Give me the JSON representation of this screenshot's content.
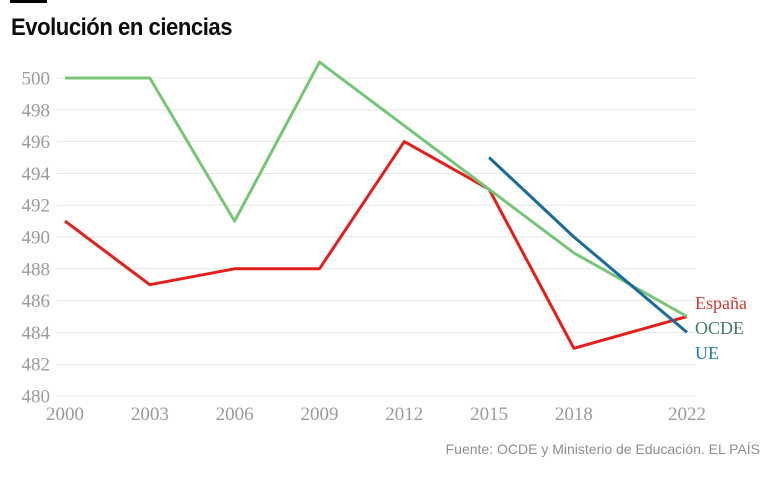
{
  "page": {
    "title": "Evolución en ciencias",
    "source": "Fuente: OCDE y Ministerio de Educación. EL PAÍS"
  },
  "chart_data": {
    "type": "line",
    "title": "Evolución en ciencias",
    "x_ticks": [
      2000,
      2003,
      2006,
      2009,
      2012,
      2015,
      2018,
      2022
    ],
    "x_range": [
      2000,
      2022
    ],
    "ylim": [
      480,
      500
    ],
    "y_tick_step": 2,
    "y_ticks": [
      480,
      482,
      484,
      486,
      488,
      490,
      492,
      494,
      496,
      498,
      500
    ],
    "grid": true,
    "legend_position": "right-end",
    "grid_color": "#e5e5e5",
    "axis_label_color": "#9b9b9b",
    "series": [
      {
        "name": "España",
        "color": "#e41f1a",
        "label_color": "#cf3832",
        "x": [
          2000,
          2003,
          2006,
          2009,
          2012,
          2015,
          2018,
          2022
        ],
        "values": [
          491,
          487,
          488,
          488,
          496,
          493,
          483,
          485
        ]
      },
      {
        "name": "OCDE",
        "color": "#78c577",
        "label_color": "#3e7d62",
        "x": [
          2000,
          2003,
          2006,
          2009,
          2012,
          2015,
          2018,
          2022
        ],
        "values": [
          500,
          500,
          491,
          501,
          497,
          493,
          489,
          485
        ]
      },
      {
        "name": "UE",
        "color": "#1b6a9c",
        "label_color": "#2577ad",
        "x": [
          2015,
          2018,
          2022
        ],
        "values": [
          495,
          490,
          484
        ]
      }
    ]
  }
}
